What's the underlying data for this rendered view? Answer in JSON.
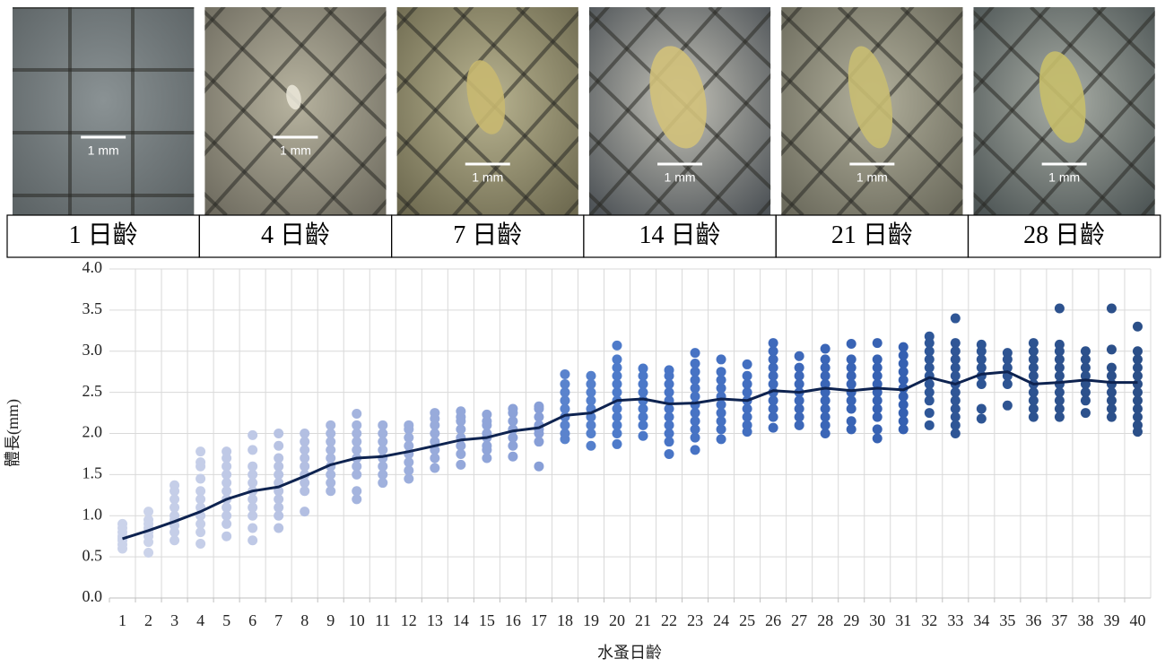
{
  "photos": [
    {
      "scale_label": "1 mm",
      "caption": "1 日齡"
    },
    {
      "scale_label": "1 mm",
      "caption": "4 日齡"
    },
    {
      "scale_label": "1 mm",
      "caption": "7 日齡"
    },
    {
      "scale_label": "1 mm",
      "caption": "14 日齡"
    },
    {
      "scale_label": "1 mm",
      "caption": "21 日齡"
    },
    {
      "scale_label": "1 mm",
      "caption": "28 日齡"
    }
  ],
  "chart_data": {
    "type": "scatter",
    "x_label": "水蚤日齡",
    "y_label": "體長(mm)",
    "categories": [
      "1",
      "2",
      "3",
      "4",
      "5",
      "6",
      "7",
      "8",
      "9",
      "10",
      "11",
      "12",
      "13",
      "14",
      "15",
      "16",
      "17",
      "18",
      "19",
      "20",
      "21",
      "22",
      "23",
      "24",
      "25",
      "26",
      "27",
      "28",
      "29",
      "30",
      "31",
      "32",
      "33",
      "34",
      "35",
      "36",
      "37",
      "38",
      "39",
      "40"
    ],
    "observations": [
      [
        0.6,
        0.65,
        0.7,
        0.72,
        0.75,
        0.8,
        0.85,
        0.9
      ],
      [
        0.55,
        0.68,
        0.75,
        0.8,
        0.85,
        0.9,
        0.95,
        1.05
      ],
      [
        0.7,
        0.8,
        0.88,
        0.95,
        1.0,
        1.1,
        1.2,
        1.3,
        1.37
      ],
      [
        0.66,
        0.8,
        0.9,
        1.0,
        1.1,
        1.2,
        1.3,
        1.45,
        1.6,
        1.65,
        1.78
      ],
      [
        0.75,
        0.9,
        1.0,
        1.1,
        1.2,
        1.3,
        1.4,
        1.5,
        1.6,
        1.7,
        1.78
      ],
      [
        0.7,
        0.85,
        1.0,
        1.1,
        1.2,
        1.3,
        1.4,
        1.5,
        1.6,
        1.8,
        1.98
      ],
      [
        0.85,
        1.0,
        1.1,
        1.2,
        1.3,
        1.4,
        1.5,
        1.6,
        1.7,
        1.85,
        2.0
      ],
      [
        1.05,
        1.3,
        1.4,
        1.5,
        1.6,
        1.7,
        1.8,
        1.9,
        2.0
      ],
      [
        1.3,
        1.4,
        1.5,
        1.6,
        1.7,
        1.8,
        1.9,
        2.0,
        2.1
      ],
      [
        1.2,
        1.3,
        1.5,
        1.6,
        1.7,
        1.8,
        1.9,
        2.0,
        2.1,
        2.24
      ],
      [
        1.4,
        1.5,
        1.6,
        1.7,
        1.8,
        1.9,
        2.0,
        2.1
      ],
      [
        1.45,
        1.55,
        1.65,
        1.75,
        1.85,
        1.95,
        2.05,
        2.1
      ],
      [
        1.58,
        1.7,
        1.8,
        1.9,
        2.0,
        2.1,
        2.18,
        2.25
      ],
      [
        1.62,
        1.75,
        1.85,
        1.95,
        2.05,
        2.15,
        2.2,
        2.27
      ],
      [
        1.7,
        1.8,
        1.85,
        1.95,
        2.0,
        2.1,
        2.15,
        2.23
      ],
      [
        1.72,
        1.85,
        1.95,
        2.05,
        2.15,
        2.25,
        2.3
      ],
      [
        1.6,
        1.9,
        2.0,
        2.05,
        2.1,
        2.2,
        2.3,
        2.33
      ],
      [
        1.93,
        2.0,
        2.1,
        2.2,
        2.3,
        2.4,
        2.5,
        2.6,
        2.72
      ],
      [
        1.85,
        2.0,
        2.1,
        2.2,
        2.3,
        2.4,
        2.5,
        2.6,
        2.7
      ],
      [
        1.87,
        2.0,
        2.1,
        2.2,
        2.3,
        2.4,
        2.5,
        2.6,
        2.7,
        2.8,
        2.9,
        3.07
      ],
      [
        1.97,
        2.1,
        2.2,
        2.3,
        2.4,
        2.5,
        2.6,
        2.7,
        2.79
      ],
      [
        1.75,
        1.9,
        2.0,
        2.1,
        2.2,
        2.3,
        2.4,
        2.5,
        2.6,
        2.7,
        2.77
      ],
      [
        1.8,
        1.95,
        2.05,
        2.15,
        2.25,
        2.35,
        2.45,
        2.55,
        2.65,
        2.75,
        2.85,
        2.98
      ],
      [
        1.93,
        2.05,
        2.15,
        2.25,
        2.35,
        2.45,
        2.55,
        2.65,
        2.75,
        2.9
      ],
      [
        2.02,
        2.1,
        2.2,
        2.3,
        2.4,
        2.5,
        2.6,
        2.7,
        2.84
      ],
      [
        2.07,
        2.2,
        2.3,
        2.4,
        2.5,
        2.6,
        2.7,
        2.8,
        2.9,
        3.0,
        3.1
      ],
      [
        2.1,
        2.2,
        2.3,
        2.4,
        2.5,
        2.6,
        2.7,
        2.8,
        2.94
      ],
      [
        2.0,
        2.1,
        2.2,
        2.3,
        2.4,
        2.5,
        2.6,
        2.7,
        2.8,
        2.9,
        3.03
      ],
      [
        2.05,
        2.15,
        2.3,
        2.4,
        2.5,
        2.6,
        2.7,
        2.8,
        2.9,
        3.09
      ],
      [
        1.94,
        2.05,
        2.2,
        2.3,
        2.4,
        2.5,
        2.6,
        2.7,
        2.8,
        2.9,
        3.1
      ],
      [
        2.05,
        2.15,
        2.25,
        2.35,
        2.45,
        2.55,
        2.65,
        2.75,
        2.85,
        2.95,
        3.05
      ],
      [
        2.1,
        2.25,
        2.4,
        2.5,
        2.6,
        2.7,
        2.8,
        2.9,
        3.0,
        3.1,
        3.18
      ],
      [
        2.0,
        2.1,
        2.2,
        2.3,
        2.4,
        2.5,
        2.6,
        2.7,
        2.8,
        2.9,
        3.0,
        3.1,
        3.4
      ],
      [
        2.18,
        2.3,
        2.6,
        2.7,
        2.8,
        2.9,
        3.0,
        3.08
      ],
      [
        2.34,
        2.6,
        2.7,
        2.8,
        2.9,
        2.98
      ],
      [
        2.2,
        2.3,
        2.4,
        2.5,
        2.6,
        2.7,
        2.8,
        2.9,
        3.0,
        3.1
      ],
      [
        2.2,
        2.3,
        2.4,
        2.5,
        2.6,
        2.7,
        2.8,
        2.9,
        3.0,
        3.08,
        3.52
      ],
      [
        2.25,
        2.4,
        2.5,
        2.6,
        2.7,
        2.8,
        2.9,
        3.0
      ],
      [
        2.2,
        2.3,
        2.4,
        2.5,
        2.6,
        2.7,
        2.8,
        3.02,
        3.52
      ],
      [
        2.02,
        2.1,
        2.2,
        2.3,
        2.4,
        2.5,
        2.6,
        2.7,
        2.8,
        2.9,
        3.0,
        3.3
      ]
    ],
    "point_colors": [
      "#cbd3ea",
      "#cbd3ea",
      "#c5cee8",
      "#c5cee8",
      "#bfc9e6",
      "#bfc9e6",
      "#b8c3e3",
      "#b3bfe2",
      "#a8b7df",
      "#a4b4de",
      "#a0b1dd",
      "#9caedc",
      "#98abdb",
      "#94a8da",
      "#90a5d9",
      "#8ca2d8",
      "#889fd7",
      "#5a83cd",
      "#5580cc",
      "#4e7bca",
      "#4b78c8",
      "#4975c6",
      "#4773c4",
      "#4571c2",
      "#436fc0",
      "#3f6abb",
      "#3d68b9",
      "#3b66b7",
      "#3964b5",
      "#3762b3",
      "#3560b1",
      "#2f5798",
      "#2f5696",
      "#2e5594",
      "#2e5492",
      "#2d5390",
      "#2d528e",
      "#2c518c",
      "#2c508a",
      "#2b4f88"
    ],
    "mean_line": {
      "color": "#0e2350",
      "values": [
        0.72,
        0.82,
        0.93,
        1.05,
        1.2,
        1.3,
        1.35,
        1.48,
        1.62,
        1.7,
        1.72,
        1.78,
        1.85,
        1.92,
        1.95,
        2.03,
        2.07,
        2.22,
        2.25,
        2.4,
        2.42,
        2.36,
        2.37,
        2.42,
        2.4,
        2.52,
        2.5,
        2.55,
        2.52,
        2.55,
        2.53,
        2.68,
        2.6,
        2.72,
        2.75,
        2.6,
        2.62,
        2.65,
        2.62,
        2.62
      ]
    },
    "ylim": [
      0,
      4
    ],
    "yticks": [
      {
        "value": 0,
        "label": "0.0"
      },
      {
        "value": 0.5,
        "label": "0.5"
      },
      {
        "value": 1,
        "label": "1.0"
      },
      {
        "value": 1.5,
        "label": "1.5"
      },
      {
        "value": 2,
        "label": "2.0"
      },
      {
        "value": 2.5,
        "label": "2.5"
      },
      {
        "value": 3,
        "label": "3.0"
      },
      {
        "value": 3.5,
        "label": "3.5"
      },
      {
        "value": 4,
        "label": "4.0"
      }
    ],
    "grid": true
  }
}
